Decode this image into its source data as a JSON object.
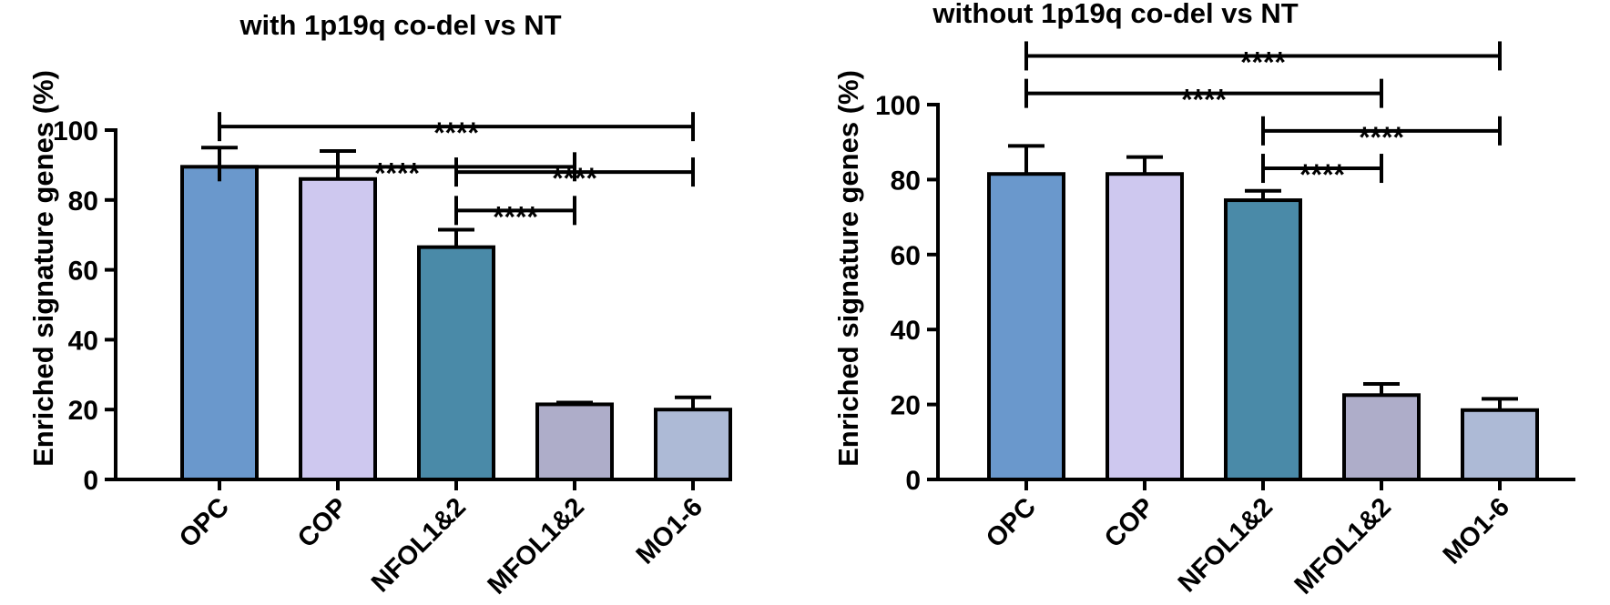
{
  "chart_data": [
    {
      "type": "bar",
      "title": "with 1p19q co-del vs NT",
      "xlabel": "",
      "ylabel": "Enriched signature genes (%)",
      "ylim": [
        0,
        100
      ],
      "yticks": [
        0,
        20,
        40,
        60,
        80,
        100
      ],
      "categories": [
        "OPC",
        "COP",
        "NFOL1&2",
        "MFOL1&2",
        "MO1-6"
      ],
      "values": [
        89.5,
        86,
        66.5,
        21.5,
        20
      ],
      "errors": [
        5.5,
        8,
        5,
        0.5,
        3.5
      ],
      "colors": [
        "#6a98cc",
        "#cec8ef",
        "#4a8aa8",
        "#aeadc9",
        "#adbad6"
      ],
      "significance": [
        {
          "from": 0,
          "to": 4,
          "label": "****",
          "level": 101
        },
        {
          "from": 0,
          "to": 3,
          "label": "****",
          "level": 89.5
        },
        {
          "from": 2,
          "to": 4,
          "label": "****",
          "level": 88
        },
        {
          "from": 2,
          "to": 3,
          "label": "****",
          "level": 77
        }
      ]
    },
    {
      "type": "bar",
      "title": "without 1p19q co-del vs NT",
      "xlabel": "",
      "ylabel": "Enriched signature genes (%)",
      "ylim": [
        0,
        100
      ],
      "yticks": [
        0,
        20,
        40,
        60,
        80,
        100
      ],
      "categories": [
        "OPC",
        "COP",
        "NFOL1&2",
        "MFOL1&2",
        "MO1-6"
      ],
      "values": [
        81.5,
        81.5,
        74.5,
        22.5,
        18.5
      ],
      "errors": [
        7.5,
        4.5,
        2.5,
        3,
        3
      ],
      "colors": [
        "#6a98cc",
        "#cec8ef",
        "#4a8aa8",
        "#aeadc9",
        "#adbad6"
      ],
      "significance": [
        {
          "from": 0,
          "to": 4,
          "label": "****",
          "level": 113
        },
        {
          "from": 0,
          "to": 3,
          "label": "****",
          "level": 103
        },
        {
          "from": 2,
          "to": 4,
          "label": "****",
          "level": 93
        },
        {
          "from": 2,
          "to": 3,
          "label": "****",
          "level": 83
        }
      ]
    }
  ]
}
